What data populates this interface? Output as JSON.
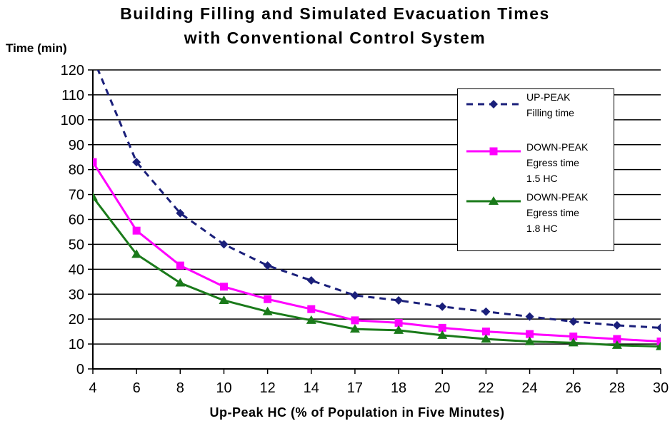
{
  "chart_data": {
    "type": "line",
    "title_line1": "Building Filling and Simulated Evacuation Times",
    "title_line2": "with Conventional Control System",
    "ylabel": "Time (min)",
    "xlabel": "Up-Peak HC (% of Population in Five Minutes)",
    "categories": [
      "4",
      "6",
      "8",
      "10",
      "12",
      "14",
      "17",
      "18",
      "20",
      "22",
      "24",
      "26",
      "28",
      "30"
    ],
    "ylim": [
      0,
      120
    ],
    "yticks": [
      0,
      10,
      20,
      30,
      40,
      50,
      60,
      70,
      80,
      90,
      100,
      110,
      120
    ],
    "grid": "horizontal",
    "legend_position": "right",
    "series": [
      {
        "name": "UP-PEAK Filling time",
        "label_lines": [
          "UP-PEAK",
          "Filling time"
        ],
        "color": "#1a1f7a",
        "dash": "dashed",
        "marker": "diamond",
        "values": [
          125,
          83,
          62.5,
          50,
          41.5,
          35.5,
          29.5,
          27.5,
          25,
          23,
          21,
          19,
          17.5,
          16.5
        ]
      },
      {
        "name": "DOWN-PEAK Egress time 1.5 HC",
        "label_lines": [
          "DOWN-PEAK",
          "Egress time",
          "1.5 HC"
        ],
        "color": "#ff00ff",
        "dash": "solid",
        "marker": "square",
        "values": [
          83,
          55.5,
          41.5,
          33,
          28,
          24,
          19.5,
          18.5,
          16.5,
          15,
          14,
          13,
          12,
          11
        ]
      },
      {
        "name": "DOWN-PEAK Egress time 1.8 HC",
        "label_lines": [
          "DOWN-PEAK",
          "Egress time",
          "1.8 HC"
        ],
        "color": "#1a7a1a",
        "dash": "solid",
        "marker": "triangle",
        "values": [
          69,
          46,
          34.5,
          27.5,
          23,
          19.5,
          16,
          15.5,
          13.5,
          12,
          11,
          10.5,
          9.5,
          9
        ]
      }
    ]
  }
}
